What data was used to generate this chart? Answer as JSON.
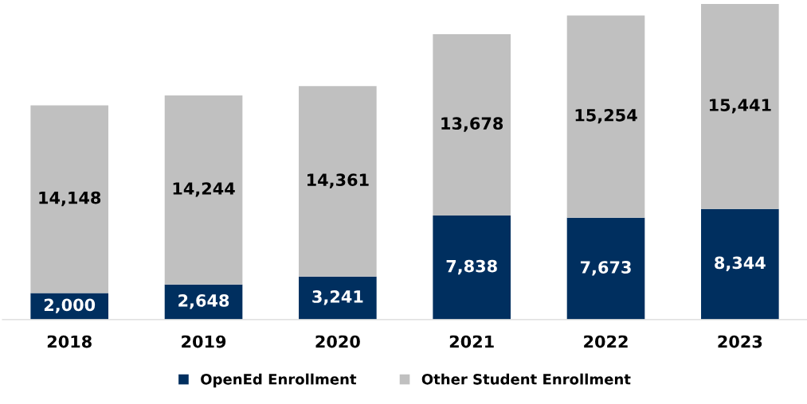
{
  "chart_data": {
    "type": "bar",
    "stacked": true,
    "legend": "bottom",
    "grid": false,
    "categories": [
      "2018",
      "2019",
      "2020",
      "2021",
      "2022",
      "2023"
    ],
    "series": [
      {
        "name": "OpenEd Enrollment",
        "color": "#002f5f",
        "values": [
          2000,
          2648,
          3241,
          7838,
          7673,
          8344
        ],
        "value_labels": [
          "2,000",
          "2,648",
          "3,241",
          "7,838",
          "7,673",
          "8,344"
        ]
      },
      {
        "name": "Other Student Enrollment",
        "color": "#c0c0c0",
        "values": [
          14148,
          14244,
          14361,
          13678,
          15254,
          15441
        ],
        "value_labels": [
          "14,148",
          "14,244",
          "14,361",
          "13,678",
          "15,254",
          "15,441"
        ]
      }
    ]
  }
}
